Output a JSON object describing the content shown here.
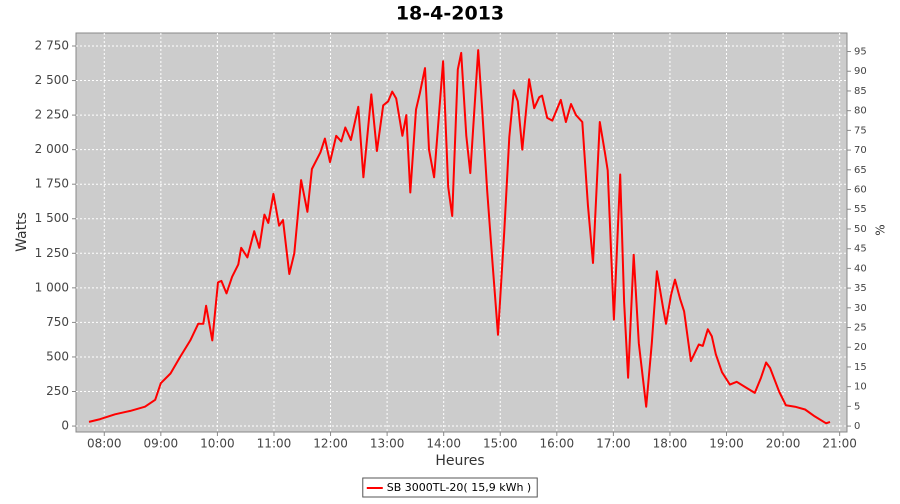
{
  "chart_data": {
    "type": "line",
    "title": "18-4-2013",
    "x_label": "Heures",
    "y_label": "Watts",
    "y2_label": "%",
    "x": [
      7.73,
      7.93,
      8.19,
      8.46,
      8.72,
      8.9,
      9.0,
      9.17,
      9.34,
      9.52,
      9.66,
      9.75,
      9.8,
      9.91,
      10.01,
      10.07,
      10.16,
      10.26,
      10.37,
      10.42,
      10.53,
      10.65,
      10.74,
      10.83,
      10.9,
      10.99,
      11.09,
      11.16,
      11.27,
      11.36,
      11.48,
      11.59,
      11.67,
      11.82,
      11.9,
      11.99,
      12.1,
      12.19,
      12.26,
      12.36,
      12.49,
      12.58,
      12.72,
      12.82,
      12.93,
      13.02,
      13.09,
      13.16,
      13.27,
      13.34,
      13.41,
      13.51,
      13.58,
      13.67,
      13.74,
      13.83,
      13.99,
      14.08,
      14.15,
      14.25,
      14.31,
      14.4,
      14.47,
      14.61,
      14.68,
      14.77,
      14.86,
      14.96,
      15.07,
      15.16,
      15.24,
      15.31,
      15.39,
      15.51,
      15.6,
      15.69,
      15.74,
      15.83,
      15.92,
      16.07,
      16.16,
      16.25,
      16.34,
      16.45,
      16.55,
      16.64,
      16.76,
      16.85,
      16.9,
      17.01,
      17.12,
      17.19,
      17.26,
      17.36,
      17.45,
      17.58,
      17.68,
      17.77,
      17.88,
      17.93,
      18.02,
      18.09,
      18.18,
      18.25,
      18.37,
      18.51,
      18.58,
      18.67,
      18.74,
      18.81,
      18.92,
      19.06,
      19.18,
      19.34,
      19.5,
      19.61,
      19.7,
      19.77,
      19.93,
      20.05,
      20.21,
      20.39,
      20.56,
      20.76,
      20.83
    ],
    "series": [
      {
        "name": "SB 3000TL-20( 15,9 kWh )",
        "color": "#ff0000",
        "values": [
          30,
          50,
          85,
          110,
          140,
          190,
          310,
          380,
          500,
          620,
          740,
          740,
          870,
          620,
          1040,
          1050,
          960,
          1080,
          1170,
          1290,
          1220,
          1410,
          1290,
          1530,
          1470,
          1680,
          1450,
          1490,
          1100,
          1250,
          1780,
          1550,
          1860,
          1980,
          2080,
          1910,
          2100,
          2060,
          2160,
          2070,
          2310,
          1800,
          2400,
          1990,
          2320,
          2350,
          2420,
          2370,
          2100,
          2250,
          1690,
          2290,
          2410,
          2590,
          2000,
          1800,
          2640,
          1730,
          1520,
          2580,
          2700,
          2100,
          1830,
          2720,
          2300,
          1700,
          1200,
          660,
          1400,
          2090,
          2430,
          2350,
          2000,
          2510,
          2300,
          2380,
          2390,
          2230,
          2210,
          2360,
          2200,
          2330,
          2250,
          2200,
          1600,
          1180,
          2200,
          1980,
          1850,
          770,
          1820,
          900,
          350,
          1240,
          600,
          140,
          600,
          1120,
          850,
          740,
          950,
          1060,
          920,
          830,
          470,
          590,
          580,
          700,
          650,
          520,
          390,
          300,
          320,
          280,
          240,
          350,
          460,
          420,
          250,
          150,
          140,
          120,
          70,
          20,
          30
        ]
      }
    ],
    "xlim": [
      7.5,
      21.13
    ],
    "xticks": [
      {
        "value": 8,
        "label": "08:00"
      },
      {
        "value": 9,
        "label": "09:00"
      },
      {
        "value": 10,
        "label": "10:00"
      },
      {
        "value": 11,
        "label": "11:00"
      },
      {
        "value": 12,
        "label": "12:00"
      },
      {
        "value": 13,
        "label": "13:00"
      },
      {
        "value": 14,
        "label": "14:00"
      },
      {
        "value": 15,
        "label": "15:00"
      },
      {
        "value": 16,
        "label": "16:00"
      },
      {
        "value": 17,
        "label": "17:00"
      },
      {
        "value": 18,
        "label": "18:00"
      },
      {
        "value": 19,
        "label": "19:00"
      },
      {
        "value": 20,
        "label": "20:00"
      },
      {
        "value": 21,
        "label": "21:00"
      }
    ],
    "ylim": [
      -43,
      2844
    ],
    "yticks": [
      0,
      250,
      500,
      750,
      {
        "value": 1000,
        "label": "1 000"
      },
      {
        "value": 1250,
        "label": "1 250"
      },
      {
        "value": 1500,
        "label": "1 500"
      },
      {
        "value": 1750,
        "label": "1 750"
      },
      {
        "value": 2000,
        "label": "2 000"
      },
      {
        "value": 2250,
        "label": "2 250"
      },
      {
        "value": 2500,
        "label": "2 500"
      },
      {
        "value": 2750,
        "label": "2 750"
      }
    ],
    "y2lim": [
      -1.5,
      99.7
    ],
    "y2ticks": [
      0,
      5,
      10,
      15,
      20,
      25,
      30,
      35,
      40,
      45,
      50,
      55,
      60,
      65,
      70,
      75,
      80,
      85,
      90,
      95
    ],
    "grid": true,
    "legend": "bottom"
  }
}
